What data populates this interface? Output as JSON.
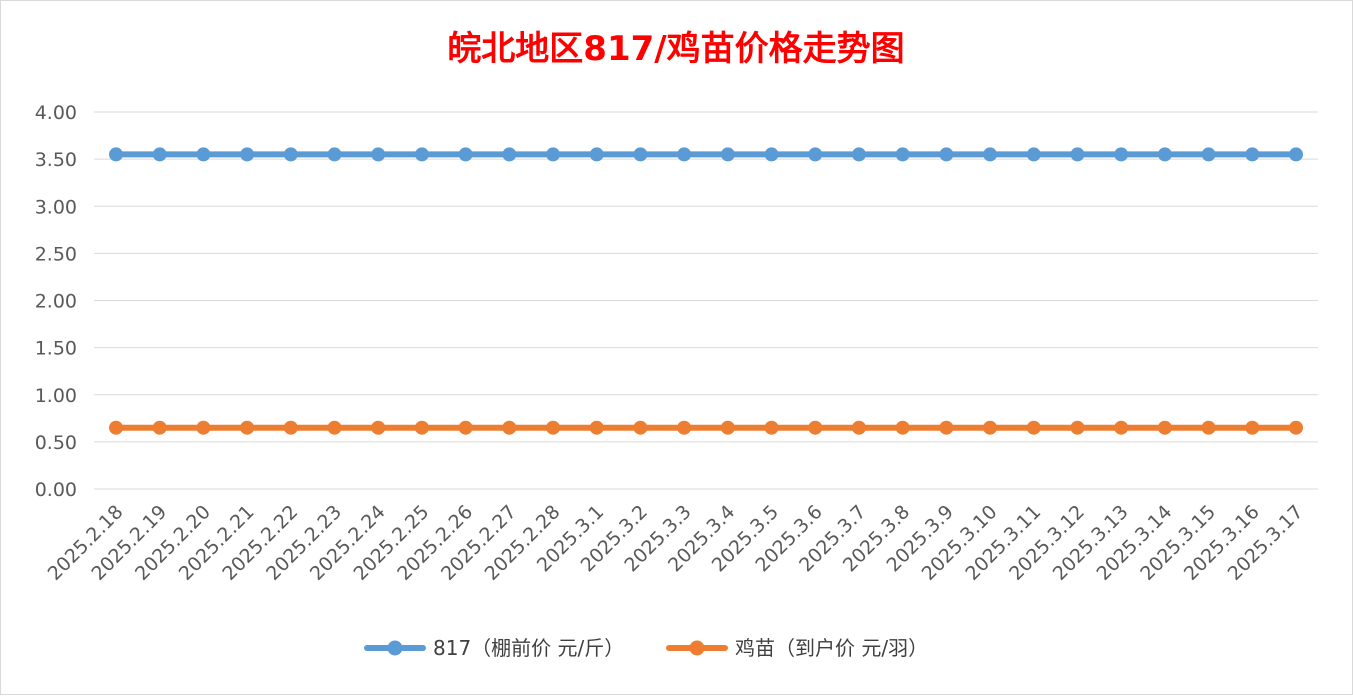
{
  "chart_data": {
    "type": "line",
    "title": "皖北地区817/鸡苗价格走势图",
    "xlabel": "",
    "ylabel": "",
    "ylim": [
      0,
      4
    ],
    "yticks": [
      "0.00",
      "0.50",
      "1.00",
      "1.50",
      "2.00",
      "2.50",
      "3.00",
      "3.50",
      "4.00"
    ],
    "grid": true,
    "legend_position": "bottom",
    "categories": [
      "2025.2.18",
      "2025.2.19",
      "2025.2.20",
      "2025.2.21",
      "2025.2.22",
      "2025.2.23",
      "2025.2.24",
      "2025.2.25",
      "2025.2.26",
      "2025.2.27",
      "2025.2.28",
      "2025.3.1",
      "2025.3.2",
      "2025.3.3",
      "2025.3.4",
      "2025.3.5",
      "2025.3.6",
      "2025.3.7",
      "2025.3.8",
      "2025.3.9",
      "2025.3.10",
      "2025.3.11",
      "2025.3.12",
      "2025.3.13",
      "2025.3.14",
      "2025.3.15",
      "2025.3.16",
      "2025.3.17"
    ],
    "series": [
      {
        "name": "817（棚前价 元/斤）",
        "color": "#5B9BD5",
        "values": [
          3.55,
          3.55,
          3.55,
          3.55,
          3.55,
          3.55,
          3.55,
          3.55,
          3.55,
          3.55,
          3.55,
          3.55,
          3.55,
          3.55,
          3.55,
          3.55,
          3.55,
          3.55,
          3.55,
          3.55,
          3.55,
          3.55,
          3.55,
          3.55,
          3.55,
          3.55,
          3.55,
          3.55
        ]
      },
      {
        "name": "鸡苗（到户价 元/羽）",
        "color": "#ED7D31",
        "values": [
          0.65,
          0.65,
          0.65,
          0.65,
          0.65,
          0.65,
          0.65,
          0.65,
          0.65,
          0.65,
          0.65,
          0.65,
          0.65,
          0.65,
          0.65,
          0.65,
          0.65,
          0.65,
          0.65,
          0.65,
          0.65,
          0.65,
          0.65,
          0.65,
          0.65,
          0.65,
          0.65,
          0.65
        ]
      }
    ],
    "title_color": "#FF0000"
  }
}
